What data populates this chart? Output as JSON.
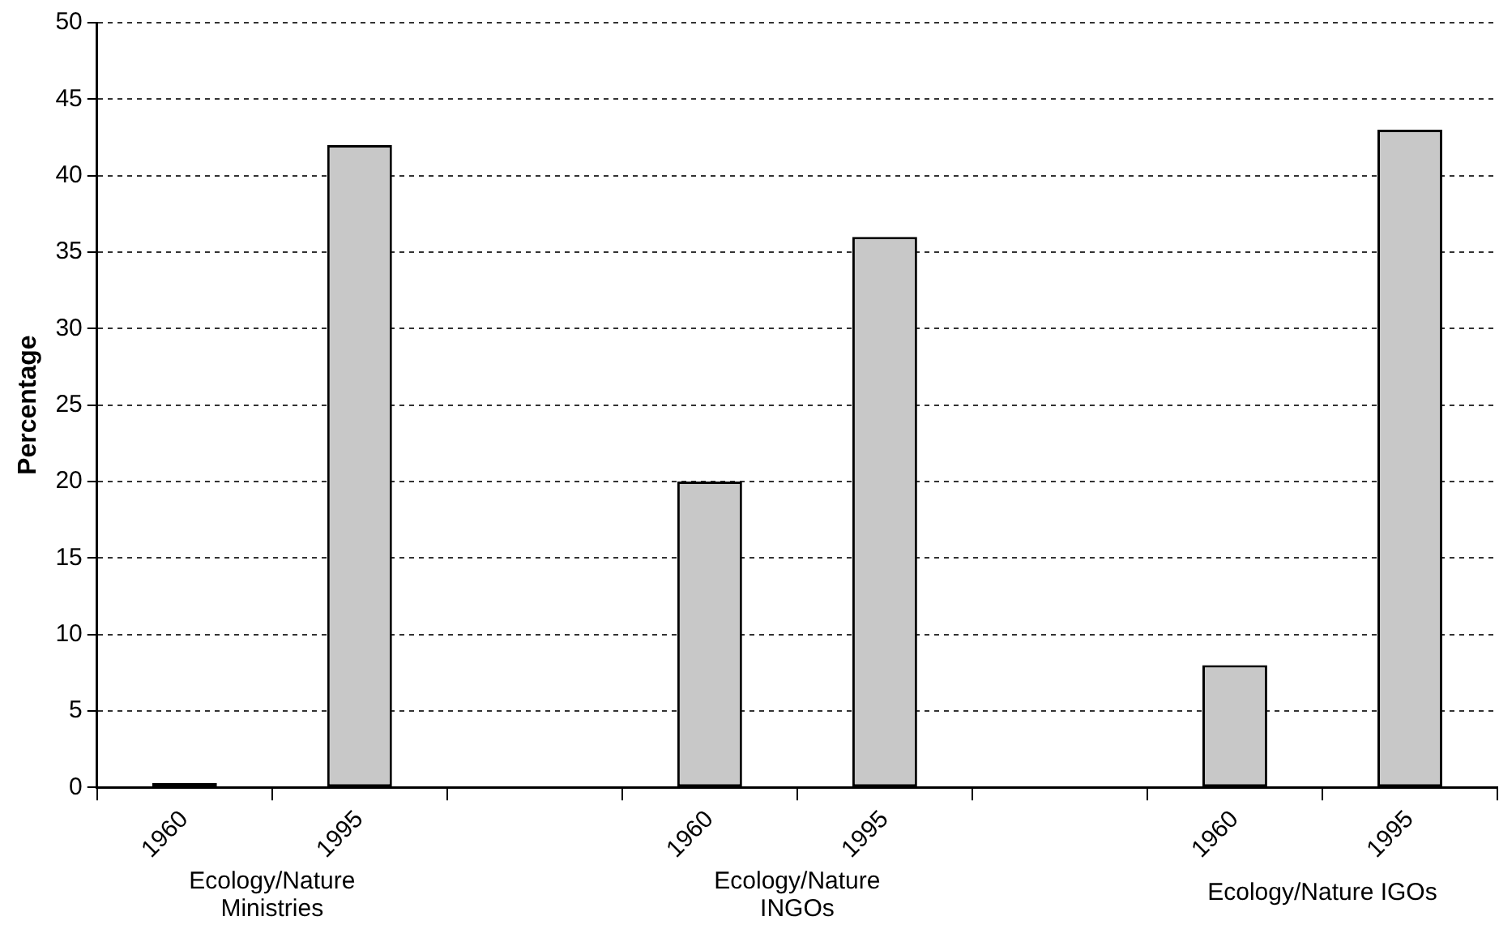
{
  "chart_data": {
    "type": "bar",
    "ylabel": "Percentage",
    "categories": [
      "1960",
      "1995",
      null,
      "1960",
      "1995",
      null,
      "1960",
      "1995"
    ],
    "values": [
      0.3,
      42,
      null,
      20,
      36,
      null,
      8,
      43
    ],
    "colors": [
      "#000000",
      "#c8c8c8",
      null,
      "#c8c8c8",
      "#c8c8c8",
      null,
      "#c8c8c8",
      "#c8c8c8"
    ],
    "ylim": [
      0,
      50
    ],
    "yticks": [
      0,
      5,
      10,
      15,
      20,
      25,
      30,
      35,
      40,
      45,
      50
    ],
    "grid": "y",
    "legend": false,
    "annotations": [
      "Ecology/Nature Ministries",
      "Ecology/Nature INGOs",
      "Ecology/Nature IGOs"
    ]
  }
}
